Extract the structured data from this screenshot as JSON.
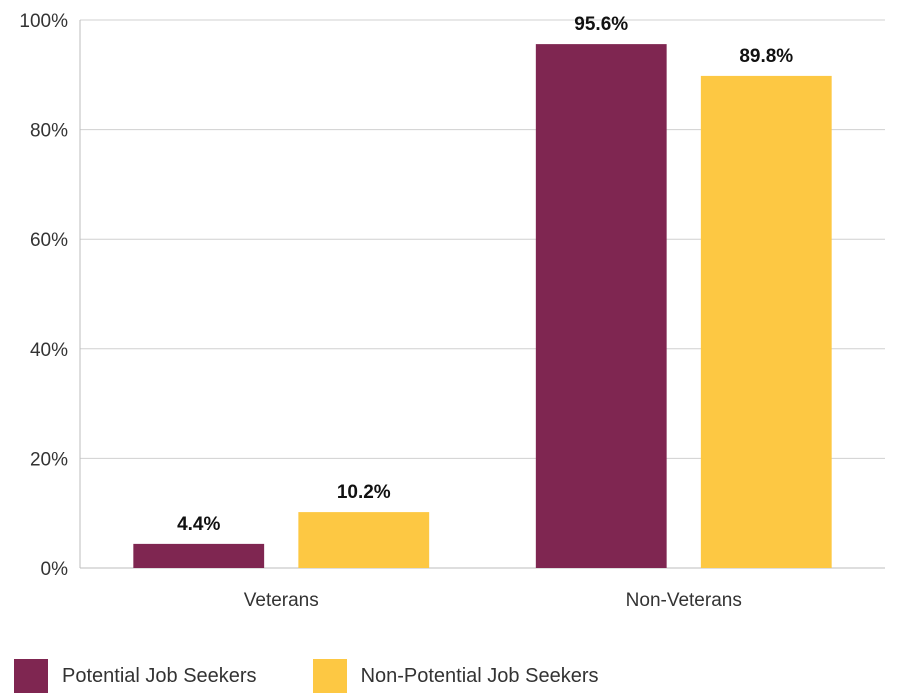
{
  "chart_data": {
    "type": "bar",
    "title": "",
    "xlabel": "",
    "ylabel": "",
    "categories": [
      "Veterans",
      "Non-Veterans"
    ],
    "series": [
      {
        "name": "Potential Job Seekers",
        "color": "#7f2651",
        "values": [
          4.4,
          95.6
        ],
        "labels": [
          "4.4%",
          "95.6%"
        ]
      },
      {
        "name": "Non-Potential Job Seekers",
        "color": "#fdc843",
        "values": [
          10.2,
          89.8
        ],
        "labels": [
          "10.2%",
          "89.8%"
        ]
      }
    ],
    "ylim": [
      0,
      100
    ],
    "yticks": [
      0,
      20,
      40,
      60,
      80,
      100
    ],
    "ytick_labels": [
      "0%",
      "20%",
      "40%",
      "60%",
      "80%",
      "100%"
    ],
    "grid": true,
    "legend": {
      "position": "bottom-left"
    }
  }
}
